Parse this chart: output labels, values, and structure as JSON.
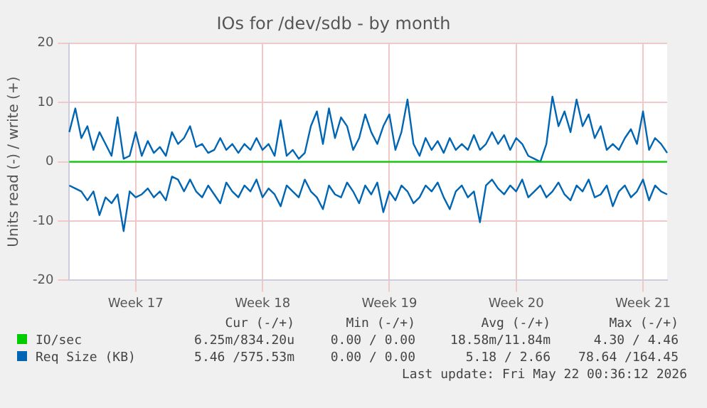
{
  "chart_data": {
    "type": "line",
    "title": "IOs for /dev/sdb - by month",
    "ylabel": "Units read (-) / write (+)",
    "categories": [
      null,
      null,
      null,
      null,
      null,
      null,
      null,
      null,
      null,
      null,
      null,
      "Week 17",
      null,
      null,
      null,
      null,
      null,
      null,
      null,
      null,
      null,
      null,
      null,
      null,
      null,
      null,
      null,
      null,
      null,
      null,
      null,
      null,
      "Week 18",
      null,
      null,
      null,
      null,
      null,
      null,
      null,
      null,
      null,
      null,
      null,
      null,
      null,
      null,
      null,
      null,
      null,
      null,
      null,
      null,
      "Week 19",
      null,
      null,
      null,
      null,
      null,
      null,
      null,
      null,
      null,
      null,
      null,
      null,
      null,
      null,
      null,
      null,
      null,
      null,
      null,
      null,
      "Week 20",
      null,
      null,
      null,
      null,
      null,
      null,
      null,
      null,
      null,
      null,
      null,
      null,
      null,
      null,
      null,
      null,
      null,
      null,
      null,
      null,
      "Week 21",
      null,
      null,
      null,
      null
    ],
    "ylim": [
      -20,
      20
    ],
    "yticks": [
      -20,
      -10,
      0,
      10,
      20
    ],
    "grid": true,
    "legend": "bottom",
    "marker": "none",
    "line_style": "solid",
    "series": [
      {
        "name": "IO/sec",
        "color": "#00cc00",
        "values": [
          0,
          0,
          0,
          0,
          0,
          0,
          0,
          0,
          0,
          0,
          0,
          0,
          0,
          0,
          0,
          0,
          0,
          0,
          0,
          0,
          0,
          0,
          0,
          0,
          0,
          0,
          0,
          0,
          0,
          0,
          0,
          0,
          0,
          0,
          0,
          0,
          0,
          0,
          0,
          0,
          0,
          0,
          0,
          0,
          0,
          0,
          0,
          0,
          0,
          0,
          0,
          0,
          0,
          0,
          0,
          0,
          0,
          0,
          0,
          0,
          0,
          0,
          0,
          0,
          0,
          0,
          0,
          0,
          0,
          0,
          0,
          0,
          0,
          0,
          0,
          0,
          0,
          0,
          0,
          0,
          0,
          0,
          0,
          0,
          0,
          0,
          0,
          0,
          0,
          0,
          0,
          0,
          0,
          0,
          0,
          0,
          0,
          0,
          0,
          0
        ]
      },
      {
        "name": "Req Size (KB)",
        "color": "#0066b3",
        "values": [
          5,
          9,
          4,
          6,
          2,
          5,
          3,
          1,
          7.5,
          0.5,
          1,
          5,
          1,
          3.5,
          1.5,
          2.5,
          1,
          5,
          3,
          4,
          6,
          2.5,
          3,
          1.5,
          2,
          4,
          2,
          3,
          1.5,
          3,
          2,
          4,
          2,
          3,
          1,
          7,
          1,
          2,
          0.5,
          1.5,
          6,
          8.5,
          3,
          9,
          4,
          7.5,
          6,
          2,
          4,
          8,
          5,
          3,
          6,
          8,
          2,
          5,
          10.5,
          3,
          1,
          4,
          2,
          3.5,
          1.5,
          4,
          2,
          3,
          2,
          4.5,
          2,
          3,
          5,
          3,
          4.5,
          2,
          4,
          3,
          1,
          0.5,
          0,
          3,
          11,
          6,
          8.5,
          5,
          10.5,
          6,
          8,
          4,
          6,
          2,
          3,
          2,
          4,
          5.5,
          3,
          8.5,
          2,
          4,
          3,
          1.5
        ]
      },
      {
        "color": "#0066b3",
        "values": [
          -4,
          -4.5,
          -5,
          -6.5,
          -5,
          -9,
          -6,
          -7,
          -5.5,
          -11.7,
          -5,
          -6,
          -5.5,
          -4.5,
          -6,
          -5,
          -6.5,
          -2.5,
          -3,
          -5,
          -3,
          -5,
          -6,
          -4,
          -5.5,
          -7,
          -3.5,
          -5,
          -6,
          -4,
          -5,
          -3,
          -6,
          -4.5,
          -5.5,
          -7.5,
          -4,
          -5,
          -6,
          -3,
          -5,
          -6,
          -8,
          -4,
          -5.5,
          -6,
          -3.5,
          -5,
          -7,
          -4,
          -5.5,
          -3.5,
          -8.5,
          -5,
          -6.5,
          -4,
          -5,
          -7,
          -6,
          -4,
          -5,
          -3.5,
          -6,
          -8,
          -5,
          -4,
          -6,
          -5,
          -10.2,
          -4,
          -3,
          -4.5,
          -5.5,
          -4,
          -5,
          -3,
          -6,
          -5,
          -4,
          -6,
          -5,
          -3.5,
          -5.5,
          -6.5,
          -4,
          -5,
          -3,
          -6,
          -5.5,
          -4,
          -7.5,
          -5,
          -4,
          -6,
          -5,
          -3,
          -6.5,
          -4,
          -5,
          -5.5
        ]
      }
    ],
    "annotations": [
      "Cur (-/+)",
      "Min (-/+)",
      "Avg (-/+)",
      "Max (-/+)",
      "6.25m/834.20u",
      "0.00 / 0.00",
      "18.58m/11.84m",
      "4.30 / 4.46",
      "5.46 /575.53m",
      "0.00 / 0.00",
      "5.18 / 2.66",
      "78.64 /164.45",
      "Last update: Fri May 22 00:36:12 2026"
    ]
  }
}
